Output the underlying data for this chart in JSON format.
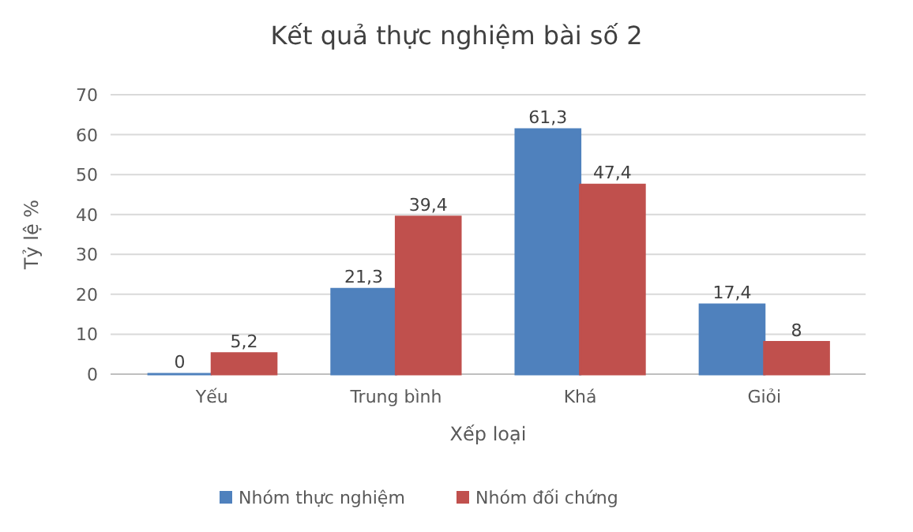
{
  "chart_data": {
    "type": "bar",
    "title": "Kết quả thực nghiệm bài số 2",
    "xlabel": "Xếp loại",
    "ylabel": "Tỷ lệ %",
    "categories": [
      "Yếu",
      "Trung bình",
      "Khá",
      "Giỏi"
    ],
    "series": [
      {
        "name": "Nhóm thực nghiệm",
        "color": "#4f81bd",
        "values": [
          0,
          21.3,
          61.3,
          17.4
        ],
        "value_labels": [
          "0",
          "21,3",
          "61,3",
          "17,4"
        ]
      },
      {
        "name": "Nhóm đối chứng",
        "color": "#c0504d",
        "values": [
          5.2,
          39.4,
          47.4,
          8
        ],
        "value_labels": [
          "5,2",
          "39,4",
          "47,4",
          "8"
        ]
      }
    ],
    "ylim": [
      0,
      70
    ],
    "yticks": [
      0,
      10,
      20,
      30,
      40,
      50,
      60,
      70
    ],
    "grid": "y",
    "legend": "bottom"
  }
}
